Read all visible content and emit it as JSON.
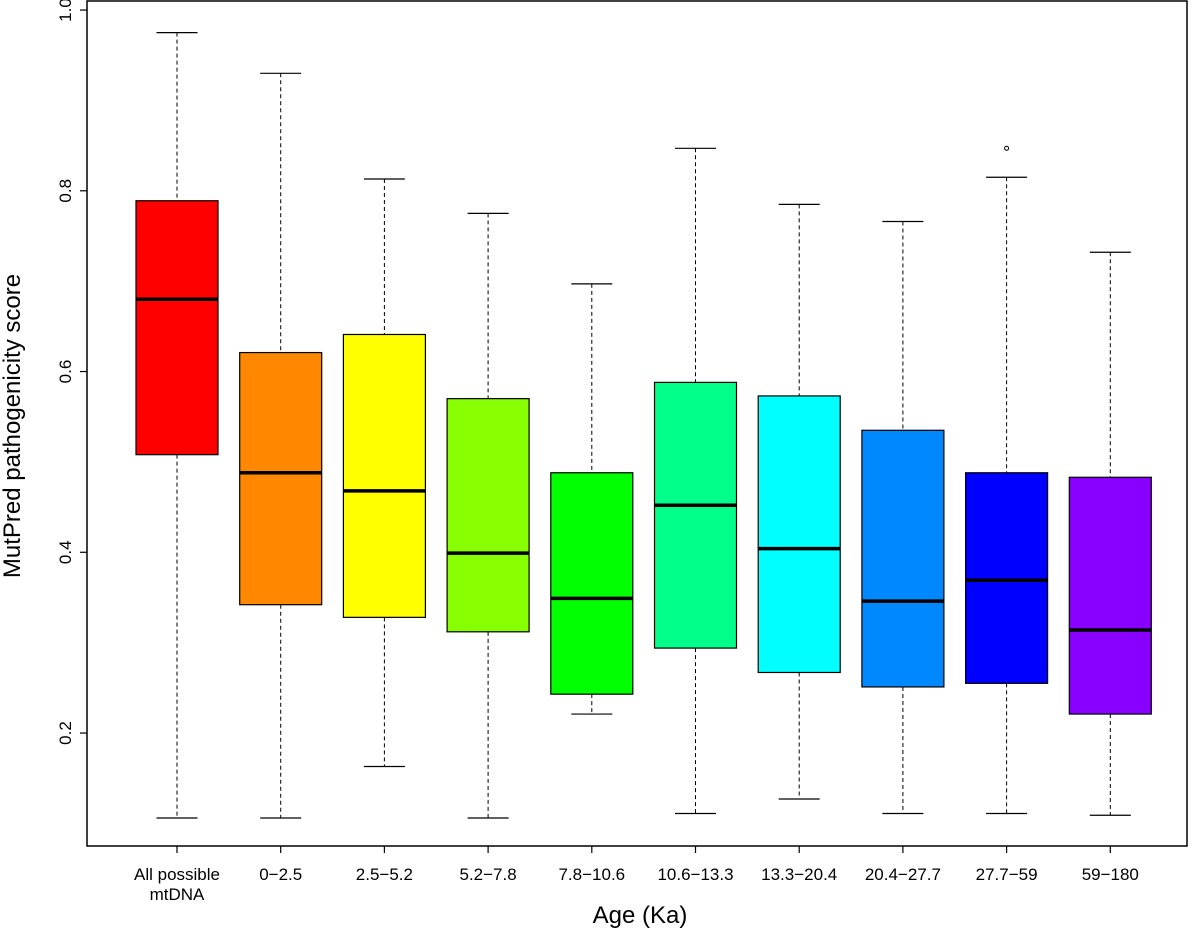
{
  "chart_data": {
    "type": "boxplot",
    "xlabel": "Age (Ka)",
    "ylabel": "MutPred pathogenicity score",
    "ylim": [
      0.075,
      1.01
    ],
    "yticks": [
      "0.2",
      "0.4",
      "0.6",
      "0.8",
      "1.0"
    ],
    "grid": false,
    "categories": [
      [
        "All possible",
        "mtDNA"
      ],
      [
        "0−2.5"
      ],
      [
        "2.5−5.2"
      ],
      [
        "5.2−7.8"
      ],
      [
        "7.8−10.6"
      ],
      [
        "10.6−13.3"
      ],
      [
        "13.3−20.4"
      ],
      [
        "20.4−27.7"
      ],
      [
        "27.7−59"
      ],
      [
        "59−180"
      ]
    ],
    "boxes": [
      {
        "min": 0.106,
        "q1": 0.508,
        "median": 0.68,
        "q3": 0.789,
        "max": 0.975,
        "color": "#ff0000",
        "outliers": []
      },
      {
        "min": 0.106,
        "q1": 0.342,
        "median": 0.488,
        "q3": 0.621,
        "max": 0.93,
        "color": "#ff8800",
        "outliers": []
      },
      {
        "min": 0.163,
        "q1": 0.328,
        "median": 0.468,
        "q3": 0.641,
        "max": 0.813,
        "color": "#ffff00",
        "outliers": []
      },
      {
        "min": 0.106,
        "q1": 0.312,
        "median": 0.399,
        "q3": 0.57,
        "max": 0.775,
        "color": "#88ff00",
        "outliers": []
      },
      {
        "min": 0.221,
        "q1": 0.243,
        "median": 0.349,
        "q3": 0.488,
        "max": 0.697,
        "color": "#00ff00",
        "outliers": []
      },
      {
        "min": 0.111,
        "q1": 0.294,
        "median": 0.452,
        "q3": 0.588,
        "max": 0.847,
        "color": "#00ff88",
        "outliers": []
      },
      {
        "min": 0.127,
        "q1": 0.267,
        "median": 0.404,
        "q3": 0.573,
        "max": 0.785,
        "color": "#00ffff",
        "outliers": []
      },
      {
        "min": 0.111,
        "q1": 0.251,
        "median": 0.346,
        "q3": 0.535,
        "max": 0.766,
        "color": "#0088ff",
        "outliers": []
      },
      {
        "min": 0.111,
        "q1": 0.255,
        "median": 0.369,
        "q3": 0.488,
        "max": 0.815,
        "color": "#0000ff",
        "outliers": [
          0.847
        ]
      },
      {
        "min": 0.109,
        "q1": 0.221,
        "median": 0.314,
        "q3": 0.483,
        "max": 0.732,
        "color": "#8800ff",
        "outliers": []
      }
    ]
  }
}
